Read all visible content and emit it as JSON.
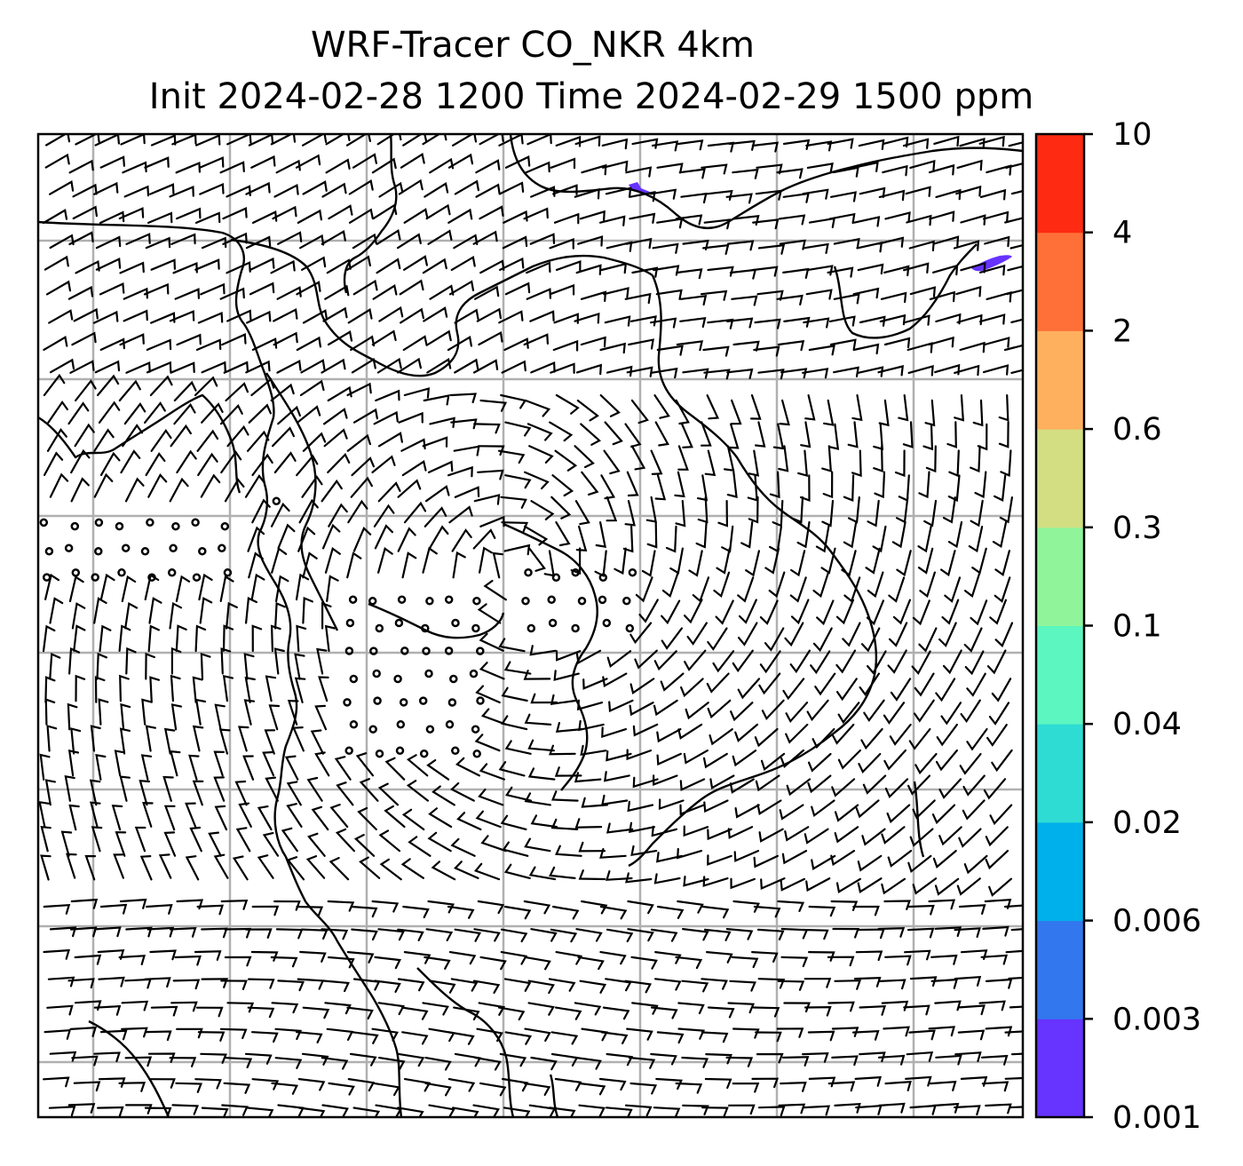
{
  "title": {
    "line1": "WRF-Tracer CO_NKR 4km",
    "line2": "Init 2024-02-28 1200 Time 2024-02-29 1500 ppm"
  },
  "colorbar": {
    "levels": [
      "0.001",
      "0.003",
      "0.006",
      "0.02",
      "0.04",
      "0.1",
      "0.3",
      "0.6",
      "2",
      "4",
      "10"
    ],
    "colors": [
      "#6633ff",
      "#3377ee",
      "#00b0ea",
      "#2edcd4",
      "#5cf6c0",
      "#90f59a",
      "#d3de82",
      "#ffb05f",
      "#ff7038",
      "#ff2a12"
    ]
  },
  "map": {
    "layers": [
      "wind-barbs",
      "coastlines",
      "country-borders",
      "gridlines",
      "tracer-concentration"
    ],
    "tracer_patch_color": "#6633ff"
  }
}
